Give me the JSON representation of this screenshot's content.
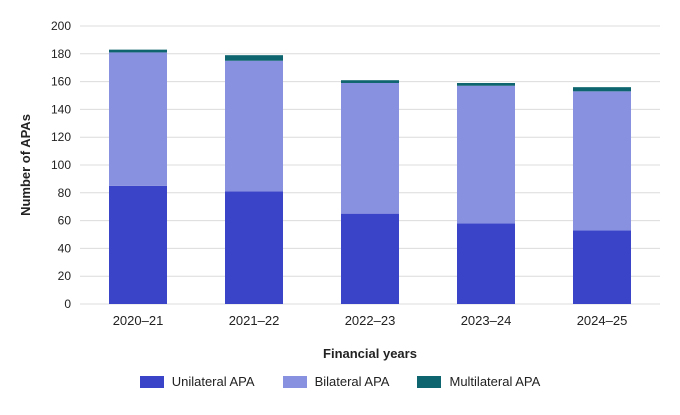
{
  "chart_data": {
    "type": "bar",
    "stacked": true,
    "categories": [
      "2020–21",
      "2021–22",
      "2022–23",
      "2023–24",
      "2024–25"
    ],
    "series": [
      {
        "name": "Unilateral APA",
        "values": [
          85,
          81,
          65,
          58,
          53
        ],
        "color": "#3944c8"
      },
      {
        "name": "Bilateral APA",
        "values": [
          96,
          94,
          94,
          99,
          100
        ],
        "color": "#8890e0"
      },
      {
        "name": "Multilateral APA",
        "values": [
          2,
          4,
          2,
          2,
          3
        ],
        "color": "#0e6570"
      }
    ],
    "xlabel": "Financial years",
    "ylabel": "Number of APAs",
    "ylim": [
      0,
      200
    ],
    "yticks": [
      0,
      20,
      40,
      60,
      80,
      100,
      120,
      140,
      160,
      180,
      200
    ],
    "grid": true,
    "legend": "bottom"
  }
}
